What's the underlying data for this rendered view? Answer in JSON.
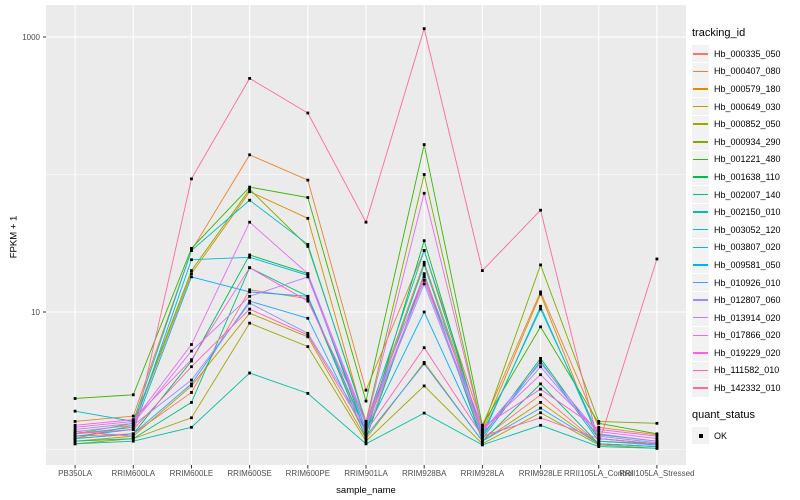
{
  "chart_data": {
    "type": "line",
    "title": "",
    "xlabel": "sample_name",
    "ylabel": "FPKM + 1",
    "x_categories": [
      "PB350LA",
      "RRIM600LA",
      "RRIM600LE",
      "RRIM600SE",
      "RRIM600PE",
      "RRIM901LA",
      "RRIM928BA",
      "RRIM928LA",
      "RRIM928LE",
      "RRII105LA_Control",
      "RRII105LA_Stressed"
    ],
    "y_scale": "log10",
    "ylim": [
      1,
      1300
    ],
    "y_ticks": [
      {
        "label": "10",
        "value": 10
      },
      {
        "label": "1000",
        "value": 1000
      }
    ],
    "y_minor_gridlines": [
      1,
      100
    ],
    "grid": "on",
    "legend_position": "right",
    "legend_title": "tracking_id",
    "point_marker": "black-square",
    "series": [
      {
        "name": "Hb_000335_050",
        "color": "#F8766D",
        "values": [
          1.25,
          1.3,
          2.6,
          14.5,
          12.5,
          1.3,
          18,
          1.2,
          2.5,
          1.1,
          1.05
        ]
      },
      {
        "name": "Hb_000407_080",
        "color": "#EA8331",
        "values": [
          1.6,
          1.75,
          28,
          139,
          91,
          2.7,
          28,
          1.5,
          14,
          1.45,
          1.28
        ]
      },
      {
        "name": "Hb_000579_180",
        "color": "#D89000",
        "values": [
          1.2,
          1.5,
          19,
          75,
          48,
          1.5,
          23,
          1.35,
          13.5,
          1.15,
          1.1
        ]
      },
      {
        "name": "Hb_000649_030",
        "color": "#C09B00",
        "values": [
          1.15,
          1.25,
          2.9,
          9.8,
          6.6,
          1.2,
          4.3,
          1.15,
          2.2,
          1.1,
          1.05
        ]
      },
      {
        "name": "Hb_000852_050",
        "color": "#A3A500",
        "values": [
          1.1,
          1.2,
          1.7,
          8.3,
          5.6,
          1.15,
          2.9,
          1.1,
          1.85,
          1.08,
          1.02
        ]
      },
      {
        "name": "Hb_000934_290",
        "color": "#7CAE00",
        "values": [
          1.3,
          1.55,
          20,
          78,
          30,
          1.6,
          100,
          1.4,
          22,
          1.6,
          1.55
        ]
      },
      {
        "name": "Hb_001221_480",
        "color": "#39B600",
        "values": [
          2.35,
          2.5,
          29,
          81,
          68,
          2.25,
          165,
          1.5,
          7.8,
          1.55,
          1.3
        ]
      },
      {
        "name": "Hb_001638_110",
        "color": "#00BB4E",
        "values": [
          1.2,
          1.3,
          4.4,
          26,
          19,
          1.3,
          33,
          1.25,
          4.6,
          1.2,
          1.1
        ]
      },
      {
        "name": "Hb_002007_140",
        "color": "#00BF7D",
        "values": [
          1.15,
          1.2,
          2.2,
          21,
          13,
          1.2,
          19,
          1.15,
          3.0,
          1.1,
          1.05
        ]
      },
      {
        "name": "Hb_002150_010",
        "color": "#00C1A3",
        "values": [
          1.1,
          1.15,
          1.45,
          3.6,
          2.56,
          1.1,
          1.84,
          1.08,
          1.5,
          1.05,
          1.02
        ]
      },
      {
        "name": "Hb_003052_120",
        "color": "#00BFC4",
        "values": [
          1.9,
          1.6,
          28,
          65,
          31,
          1.55,
          28,
          1.3,
          10.5,
          1.28,
          1.15
        ]
      },
      {
        "name": "Hb_003807_020",
        "color": "#00BAE0",
        "values": [
          1.3,
          1.45,
          24,
          25,
          18.5,
          1.4,
          22,
          1.25,
          11,
          1.2,
          1.1
        ]
      },
      {
        "name": "Hb_009581_050",
        "color": "#00B0F6",
        "values": [
          1.25,
          1.4,
          18,
          14,
          13,
          1.35,
          10,
          1.2,
          4.4,
          1.15,
          1.08
        ]
      },
      {
        "name": "Hb_010926_010",
        "color": "#35A2FF",
        "values": [
          1.2,
          1.3,
          3.0,
          12,
          9,
          1.25,
          4.2,
          1.15,
          2.0,
          1.1,
          1.05
        ]
      },
      {
        "name": "Hb_012807_060",
        "color": "#9590FF",
        "values": [
          1.35,
          1.5,
          3.2,
          11.6,
          7,
          1.45,
          16,
          1.3,
          4.0,
          1.25,
          1.12
        ]
      },
      {
        "name": "Hb_013914_020",
        "color": "#C77CFF",
        "values": [
          1.4,
          1.55,
          5.2,
          13,
          18,
          1.5,
          17,
          1.35,
          4.25,
          1.3,
          1.15
        ]
      },
      {
        "name": "Hb_017866_020",
        "color": "#E76BF3",
        "values": [
          1.45,
          1.6,
          5.8,
          45,
          19,
          1.55,
          73,
          1.4,
          3.5,
          1.35,
          1.2
        ]
      },
      {
        "name": "Hb_019229_020",
        "color": "#FA62DB",
        "values": [
          1.5,
          1.65,
          4.5,
          21,
          12,
          1.6,
          18.5,
          1.45,
          2.75,
          1.4,
          1.25
        ]
      },
      {
        "name": "Hb_111582_010",
        "color": "#FF62BC",
        "values": [
          1.3,
          1.4,
          4.0,
          10.5,
          6.8,
          1.35,
          5.5,
          1.25,
          1.7,
          1.2,
          1.1
        ]
      },
      {
        "name": "Hb_142332_010",
        "color": "#FF6A98",
        "values": [
          1.35,
          1.25,
          93,
          500,
          280,
          45,
          1150,
          20,
          55,
          1.1,
          24.3
        ]
      }
    ],
    "quant_legend": {
      "title": "quant_status",
      "items": [
        "OK"
      ]
    }
  },
  "style": {
    "panel_bg": "#EBEBEB",
    "grid_color": "#FFFFFF",
    "tick_color": "#333333",
    "key_bg": "#F2F2F2",
    "point_color": "#000000"
  }
}
